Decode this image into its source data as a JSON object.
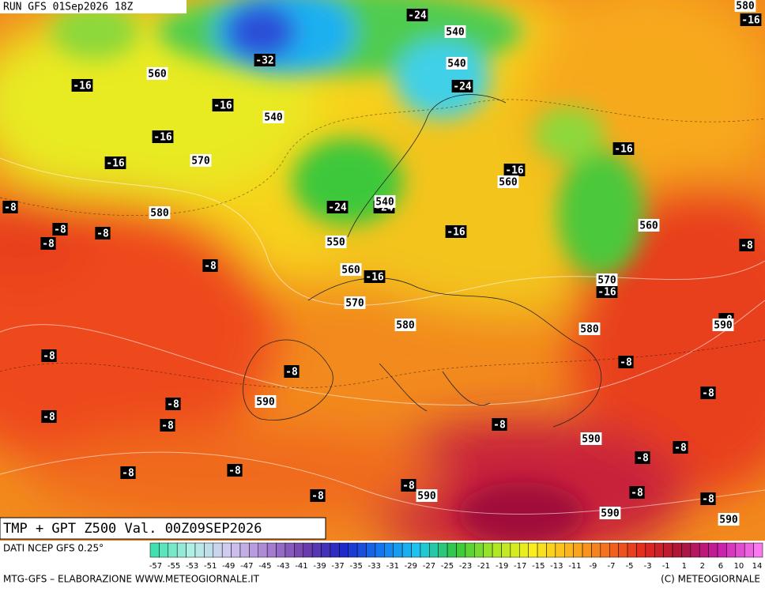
{
  "header": {
    "run": "RUN GFS 01Sep2026 18Z"
  },
  "footer": {
    "title": "TMP + GPT Z500 Val. 00Z09SEP2026",
    "source": "DATI NCEP GFS 0.25°",
    "credit": "MTG-GFS – ELABORAZIONE WWW.METEOGIORNALE.IT",
    "copyright": "(C) METEOGIORNALE"
  },
  "legend": {
    "labels": [
      "-57",
      "-55",
      "-53",
      "-51",
      "-49",
      "-47",
      "-45",
      "-43",
      "-41",
      "-39",
      "-37",
      "-35",
      "-33",
      "-31",
      "-29",
      "-27",
      "-25",
      "-23",
      "-21",
      "-19",
      "-17",
      "-15",
      "-13",
      "-11",
      "-9",
      "-7",
      "-5",
      "-3",
      "-1",
      "1",
      "2",
      "6",
      "10",
      "14"
    ]
  },
  "map": {
    "temperature_labels": [
      "-24",
      "-32",
      "-16",
      "-16",
      "-24",
      "-16",
      "-16",
      "-8",
      "-8",
      "-8",
      "-8",
      "-8",
      "-24",
      "-24",
      "-16",
      "-16",
      "-16",
      "-16",
      "-16",
      "-8",
      "-8",
      "-8",
      "-8",
      "-8",
      "-8",
      "-8",
      "-8",
      "-8",
      "-8",
      "-8",
      "-8",
      "-8",
      "-8",
      "-8",
      "-8",
      "-8",
      "-8",
      "-16"
    ],
    "height_labels": [
      "580",
      "540",
      "540",
      "560",
      "540",
      "570",
      "560",
      "580",
      "540",
      "560",
      "550",
      "560",
      "570",
      "570",
      "580",
      "580",
      "590",
      "590",
      "590",
      "590",
      "590",
      "590"
    ]
  }
}
